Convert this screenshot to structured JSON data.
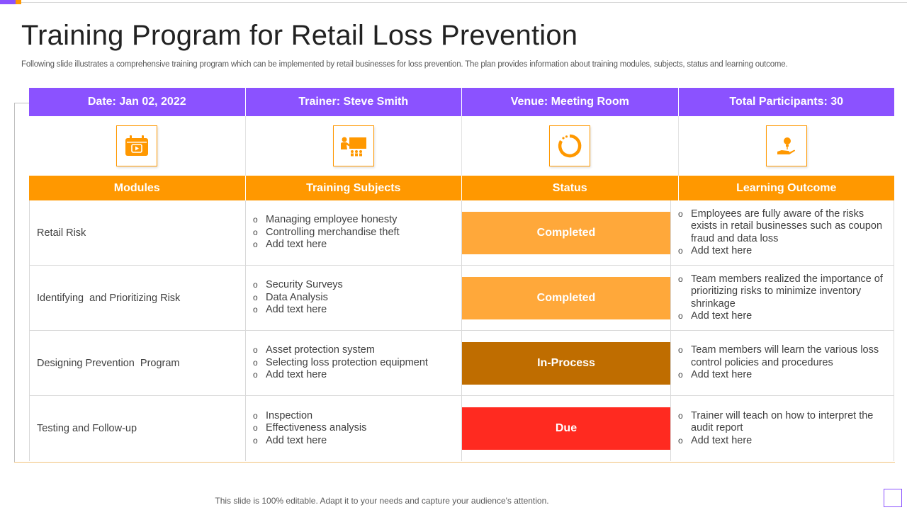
{
  "title": "Training Program for Retail Loss Prevention",
  "subtitle": "Following slide illustrates a comprehensive training program which can be implemented by retail businesses for loss prevention. The plan provides information about training modules, subjects, status and learning outcome.",
  "info_header": [
    "Date: Jan 02, 2022",
    "Trainer: Steve Smith",
    "Venue: Meeting Room",
    "Total Participants: 30"
  ],
  "icons": [
    "calendar-icon",
    "presentation-icon",
    "progress-circle-icon",
    "idea-hand-icon"
  ],
  "columns": [
    "Modules",
    "Training Subjects",
    "Status",
    "Learning Outcome"
  ],
  "status_colors": {
    "Completed": "#ffa83a",
    "In-Process": "#bf6d00",
    "Due": "#ff2a20"
  },
  "accent_purple": "#8b52ff",
  "accent_orange": "#ff9800",
  "rows": [
    {
      "module": "Retail Risk",
      "subjects": [
        "Managing employee honesty",
        "Controlling merchandise theft",
        "Add text here"
      ],
      "status": "Completed",
      "outcomes": [
        "Employees are fully aware of the risks exists in retail businesses such as coupon fraud and data loss",
        "Add text here"
      ]
    },
    {
      "module": "Identifying  and Prioritizing Risk",
      "subjects": [
        "Security Surveys",
        "Data Analysis",
        "Add text here"
      ],
      "status": "Completed",
      "outcomes": [
        "Team members realized the importance of prioritizing risks to minimize inventory shrinkage",
        "Add text here"
      ]
    },
    {
      "module": "Designing Prevention  Program",
      "subjects": [
        "Asset protection system",
        "Selecting loss protection equipment",
        "Add text here"
      ],
      "status": "In-Process",
      "outcomes": [
        "Team members will learn the various loss control policies and procedures",
        "Add text here"
      ]
    },
    {
      "module": "Testing and Follow-up",
      "subjects": [
        "Inspection",
        "Effectiveness analysis",
        "Add text here"
      ],
      "status": "Due",
      "outcomes": [
        "Trainer will teach on how to interpret the audit report",
        "Add text here"
      ]
    }
  ],
  "footer": "This slide is 100% editable. Adapt it to your needs and capture your audience's attention."
}
